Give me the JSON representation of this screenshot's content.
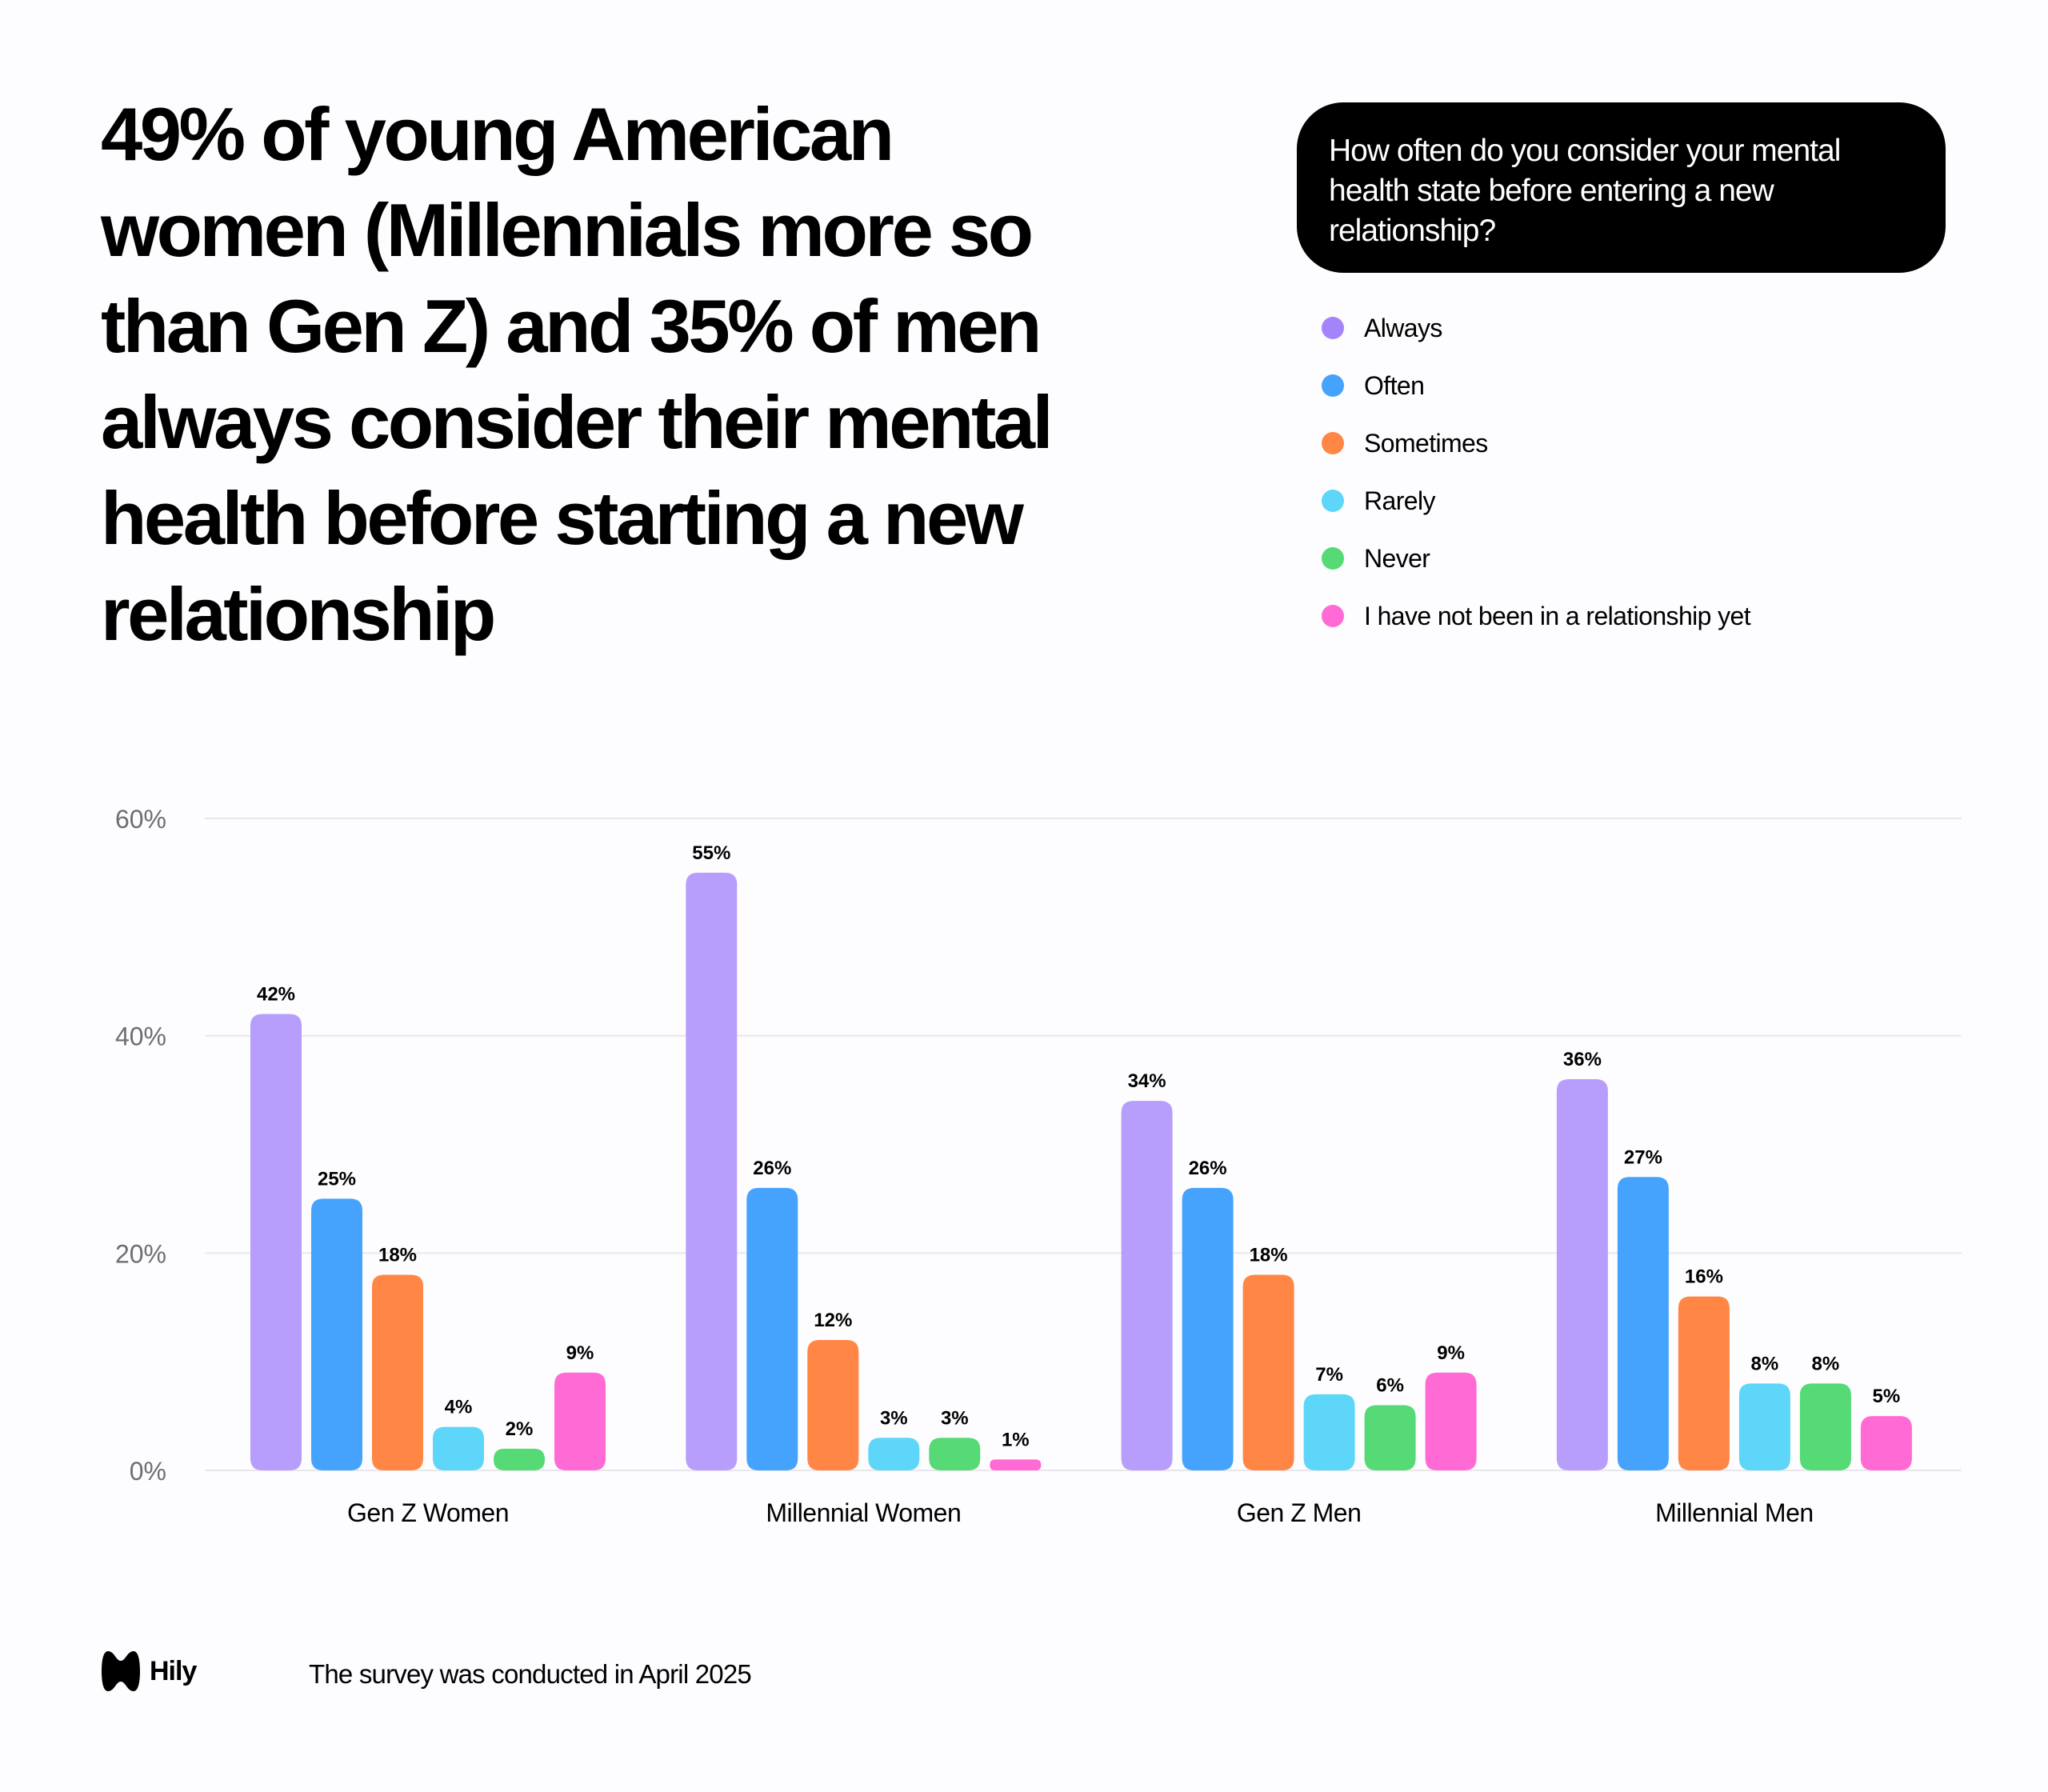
{
  "headline": {
    "lines": [
      "49% of young American",
      "women (Millennials more so",
      "than Gen Z) and 35% of men",
      "always consider their mental",
      "health before starting a new",
      "relationship"
    ]
  },
  "question": {
    "lines": [
      "How often do you consider your mental",
      "health state before entering a new",
      "relationship?"
    ]
  },
  "legend": [
    {
      "label": "Always",
      "color": "#A583FA"
    },
    {
      "label": "Often",
      "color": "#45A3FD"
    },
    {
      "label": "Sometimes",
      "color": "#FF8644"
    },
    {
      "label": "Rarely",
      "color": "#5DD6F9"
    },
    {
      "label": "Never",
      "color": "#55DA75"
    },
    {
      "label": "I have not been in a relationship yet",
      "color": "#FF6AD5"
    }
  ],
  "chart_data": {
    "type": "bar",
    "title": "How often do you consider your mental health state before entering a new relationship?",
    "xlabel": "",
    "ylabel": "",
    "ylim": [
      0,
      60
    ],
    "yticks": [
      0,
      20,
      40,
      60
    ],
    "ytick_labels": [
      "0%",
      "20%",
      "40%",
      "60%"
    ],
    "grid": true,
    "legend_position": "top-right",
    "categories": [
      "Gen Z Women",
      "Millennial Women",
      "Gen Z Men",
      "Millennial Men"
    ],
    "series": [
      {
        "name": "Always",
        "color": "#B89EFC",
        "values": [
          42,
          55,
          34,
          36
        ],
        "labels": [
          "42%",
          "55%",
          "34%",
          "36%"
        ]
      },
      {
        "name": "Often",
        "color": "#45A3FD",
        "values": [
          25,
          26,
          26,
          27
        ],
        "labels": [
          "25%",
          "26%",
          "26%",
          "27%"
        ]
      },
      {
        "name": "Sometimes",
        "color": "#FF8644",
        "values": [
          18,
          12,
          18,
          16
        ],
        "labels": [
          "18%",
          "12%",
          "18%",
          "16%"
        ]
      },
      {
        "name": "Rarely",
        "color": "#5DD6F9",
        "values": [
          4,
          3,
          7,
          8
        ],
        "labels": [
          "4%",
          "3%",
          "7%",
          "8%"
        ]
      },
      {
        "name": "Never",
        "color": "#55DA75",
        "values": [
          2,
          3,
          6,
          8
        ],
        "labels": [
          "2%",
          "3%",
          "6%",
          "8%"
        ]
      },
      {
        "name": "I have not been in a relationship yet",
        "color": "#FF6AD5",
        "values": [
          9,
          1,
          9,
          5
        ],
        "labels": [
          "9%",
          "1%",
          "9%",
          "5%"
        ]
      }
    ]
  },
  "footer": {
    "brand": "Hily",
    "note": "The survey was conducted in April 2025"
  }
}
